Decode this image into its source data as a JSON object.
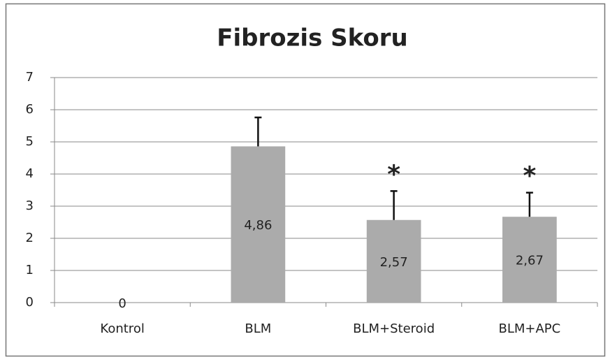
{
  "chart_data": {
    "type": "bar",
    "title": "Fibrozis Skoru",
    "categories": [
      "Kontrol",
      "BLM",
      "BLM+Steroid",
      "BLM+APC"
    ],
    "values": [
      0,
      4.86,
      2.57,
      2.67
    ],
    "value_labels": [
      "0",
      "4,86",
      "2,57",
      "2,67"
    ],
    "errors": [
      null,
      0.9,
      0.9,
      0.75
    ],
    "color": "#ababab",
    "ylim": [
      0,
      7
    ],
    "yticks": [
      0,
      1,
      2,
      3,
      4,
      5,
      6,
      7
    ],
    "grid": true,
    "annotations": [
      {
        "x": "BLM+Steroid",
        "text": "*"
      },
      {
        "x": "BLM+APC",
        "text": "*"
      }
    ]
  }
}
